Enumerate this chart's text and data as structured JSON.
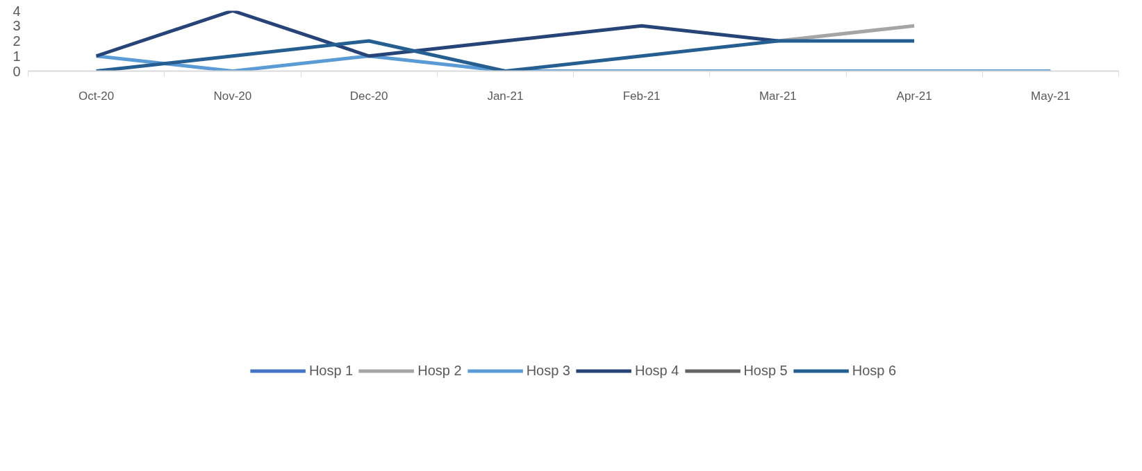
{
  "chart_data": {
    "type": "line",
    "categories": [
      "Oct-20",
      "Nov-20",
      "Dec-20",
      "Jan-21",
      "Feb-21",
      "Mar-21",
      "Apr-21",
      "May-21"
    ],
    "series": [
      {
        "name": "Hosp 1",
        "color": "#4472c4",
        "values": [
          null,
          null,
          null,
          null,
          null,
          null,
          null,
          null
        ]
      },
      {
        "name": "Hosp 2",
        "color": "#a5a5a5",
        "values": [
          null,
          null,
          null,
          null,
          null,
          2,
          3,
          null
        ]
      },
      {
        "name": "Hosp 3",
        "color": "#5b9bd5",
        "values": [
          1,
          0,
          1,
          0,
          0,
          0,
          0,
          0
        ]
      },
      {
        "name": "Hosp 4",
        "color": "#264478",
        "values": [
          1,
          4,
          1,
          2,
          3,
          2,
          null,
          null
        ]
      },
      {
        "name": "Hosp 5",
        "color": "#636363",
        "values": [
          null,
          null,
          null,
          null,
          null,
          null,
          null,
          null
        ]
      },
      {
        "name": "Hosp 6",
        "color": "#255e91",
        "values": [
          0,
          1,
          2,
          0,
          1,
          2,
          2,
          null
        ]
      }
    ],
    "ylim": [
      0,
      4
    ],
    "yticks": [
      0,
      1,
      2,
      3,
      4
    ],
    "grid": false,
    "legend": "bottom",
    "marker": "none",
    "line_style": "solid"
  }
}
